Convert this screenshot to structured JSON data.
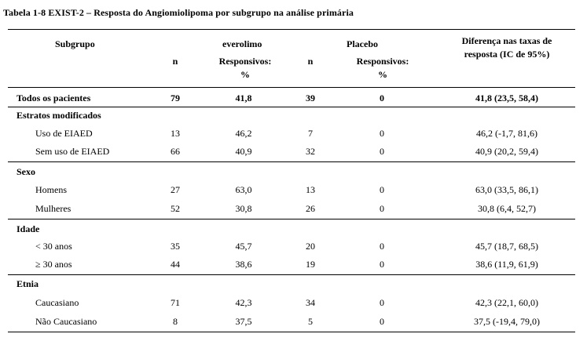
{
  "caption": "Tabela 1-8 EXIST-2 – Resposta do Angiomiolipoma por subgrupo na análise primária",
  "header": {
    "subgroup": "Subgrupo",
    "everolimus": "everolimo",
    "placebo": "Placebo",
    "n": "n",
    "responders_line1": "Responsivos:",
    "responders_line2": "%",
    "diff_line1": "Diferença nas taxas de",
    "diff_line2": "resposta (IC de 95%)"
  },
  "rows": {
    "all": {
      "label": "Todos os pacientes",
      "n1": "79",
      "r1": "41,8",
      "n2": "39",
      "r2": "0",
      "diff": "41,8 (23,5, 58,4)"
    },
    "strata": {
      "label": "Estratos modificados"
    },
    "eiaed_use": {
      "label": "Uso de EIAED",
      "n1": "13",
      "r1": "46,2",
      "n2": "7",
      "r2": "0",
      "diff": "46,2 (-1,7, 81,6)"
    },
    "eiaed_nouse": {
      "label": "Sem uso de EIAED",
      "n1": "66",
      "r1": "40,9",
      "n2": "32",
      "r2": "0",
      "diff": "40,9 (20,2, 59,4)"
    },
    "sex": {
      "label": "Sexo"
    },
    "men": {
      "label": "Homens",
      "n1": "27",
      "r1": "63,0",
      "n2": "13",
      "r2": "0",
      "diff": "63,0 (33,5, 86,1)"
    },
    "women": {
      "label": "Mulheres",
      "n1": "52",
      "r1": "30,8",
      "n2": "26",
      "r2": "0",
      "diff": "30,8 (6,4, 52,7)"
    },
    "age": {
      "label": "Idade"
    },
    "age_lt30": {
      "label": "< 30 anos",
      "n1": "35",
      "r1": "45,7",
      "n2": "20",
      "r2": "0",
      "diff": "45,7 (18,7, 68,5)"
    },
    "age_ge30": {
      "label": "≥ 30 anos",
      "n1": "44",
      "r1": "38,6",
      "n2": "19",
      "r2": "0",
      "diff": "38,6 (11,9, 61,9)"
    },
    "ethnicity": {
      "label": "Etnia"
    },
    "caucasian": {
      "label": "Caucasiano",
      "n1": "71",
      "r1": "42,3",
      "n2": "34",
      "r2": "0",
      "diff": "42,3 (22,1, 60,0)"
    },
    "noncaucasian": {
      "label": "Não Caucasiano",
      "n1": "8",
      "r1": "37,5",
      "n2": "5",
      "r2": "0",
      "diff": "37,5 (-19,4, 79,0)"
    }
  }
}
